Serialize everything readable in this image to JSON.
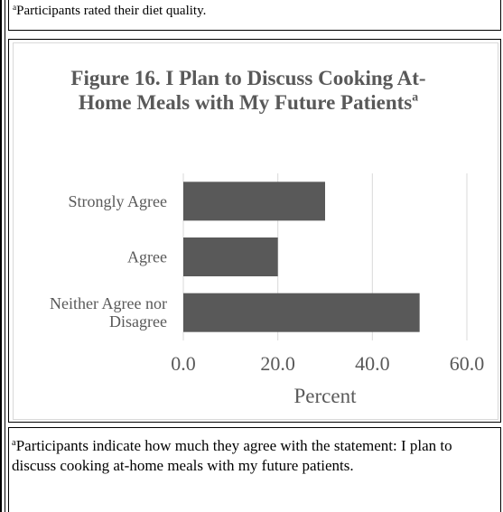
{
  "top_note": {
    "marker": "a",
    "text": "Participants rated their diet quality."
  },
  "figure": {
    "title_main": "Figure 16. I Plan to Discuss Cooking At-Home Meals with My Future Patients",
    "title_marker": "a"
  },
  "chart_data": {
    "type": "bar",
    "orientation": "horizontal",
    "title": "Figure 16. I Plan to Discuss Cooking At-Home Meals with My Future Patients",
    "categories": [
      "Strongly Agree",
      "Agree",
      "Neither Agree nor Disagree"
    ],
    "category_lines": [
      [
        "Strongly Agree"
      ],
      [
        "Agree"
      ],
      [
        "Neither Agree nor",
        "Disagree"
      ]
    ],
    "values": [
      30,
      20,
      50
    ],
    "xlabel": "Percent",
    "ylabel": "",
    "xlim": [
      0,
      60
    ],
    "xticks": [
      0,
      20,
      40,
      60
    ],
    "xtick_labels": [
      "0.0",
      "20.0",
      "40.0",
      "60.0"
    ],
    "grid": "vertical",
    "legend": "none",
    "bar_color": "#595959",
    "grid_color": "#d9d9d9",
    "text_color": "#595959"
  },
  "bottom_note": {
    "marker": "a",
    "text": "Participants indicate how much they agree with the statement: I plan to discuss cooking at-home meals with my future patients."
  }
}
